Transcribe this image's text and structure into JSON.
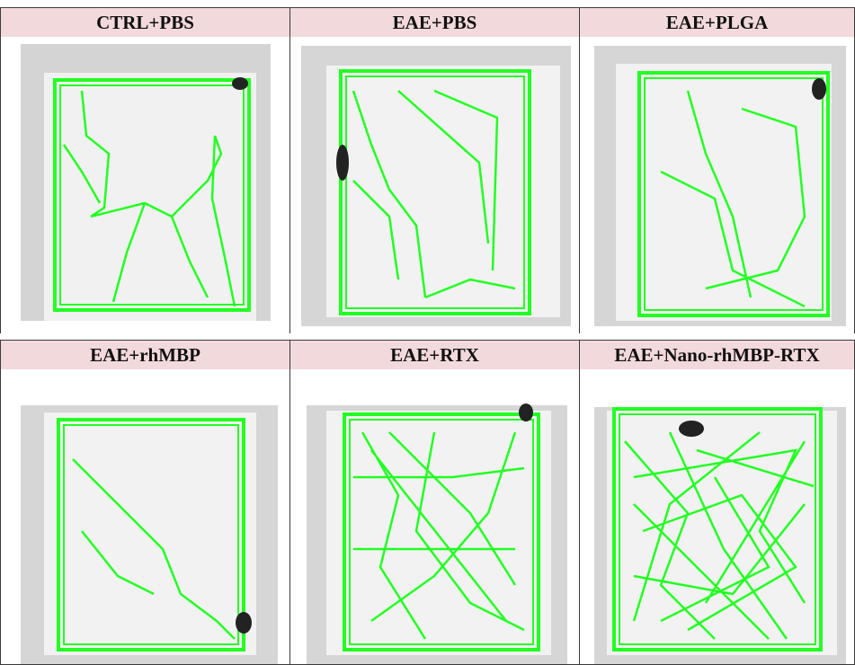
{
  "colors": {
    "header_bg": "#f2d9dc",
    "track": "#22ff22",
    "arena": "#ececec"
  },
  "panels": [
    {
      "label": "CTRL+PBS",
      "mouse_icon": "mouse-icon"
    },
    {
      "label": "EAE+PBS",
      "mouse_icon": "mouse-icon"
    },
    {
      "label": "EAE+PLGA",
      "mouse_icon": "mouse-icon"
    },
    {
      "label": "EAE+rhMBP",
      "mouse_icon": "mouse-icon"
    },
    {
      "label": "EAE+RTX",
      "mouse_icon": "mouse-icon"
    },
    {
      "label": "EAE+Nano-rhMBP-RTX",
      "mouse_icon": "mouse-icon"
    }
  ]
}
